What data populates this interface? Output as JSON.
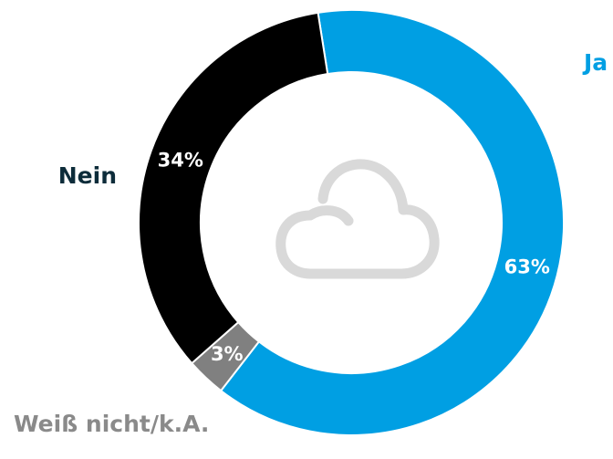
{
  "chart_data": {
    "type": "pie",
    "donut": true,
    "categories": [
      "Ja",
      "Weiß nicht/k.A.",
      "Nein"
    ],
    "values": [
      63,
      3,
      34
    ],
    "value_labels": [
      "63%",
      "3%",
      "34%"
    ],
    "colors": [
      "#009fe3",
      "#808080",
      "#000000"
    ],
    "label_colors": [
      "#009fe3",
      "#8a8a8a",
      "#0d2c3a"
    ]
  }
}
